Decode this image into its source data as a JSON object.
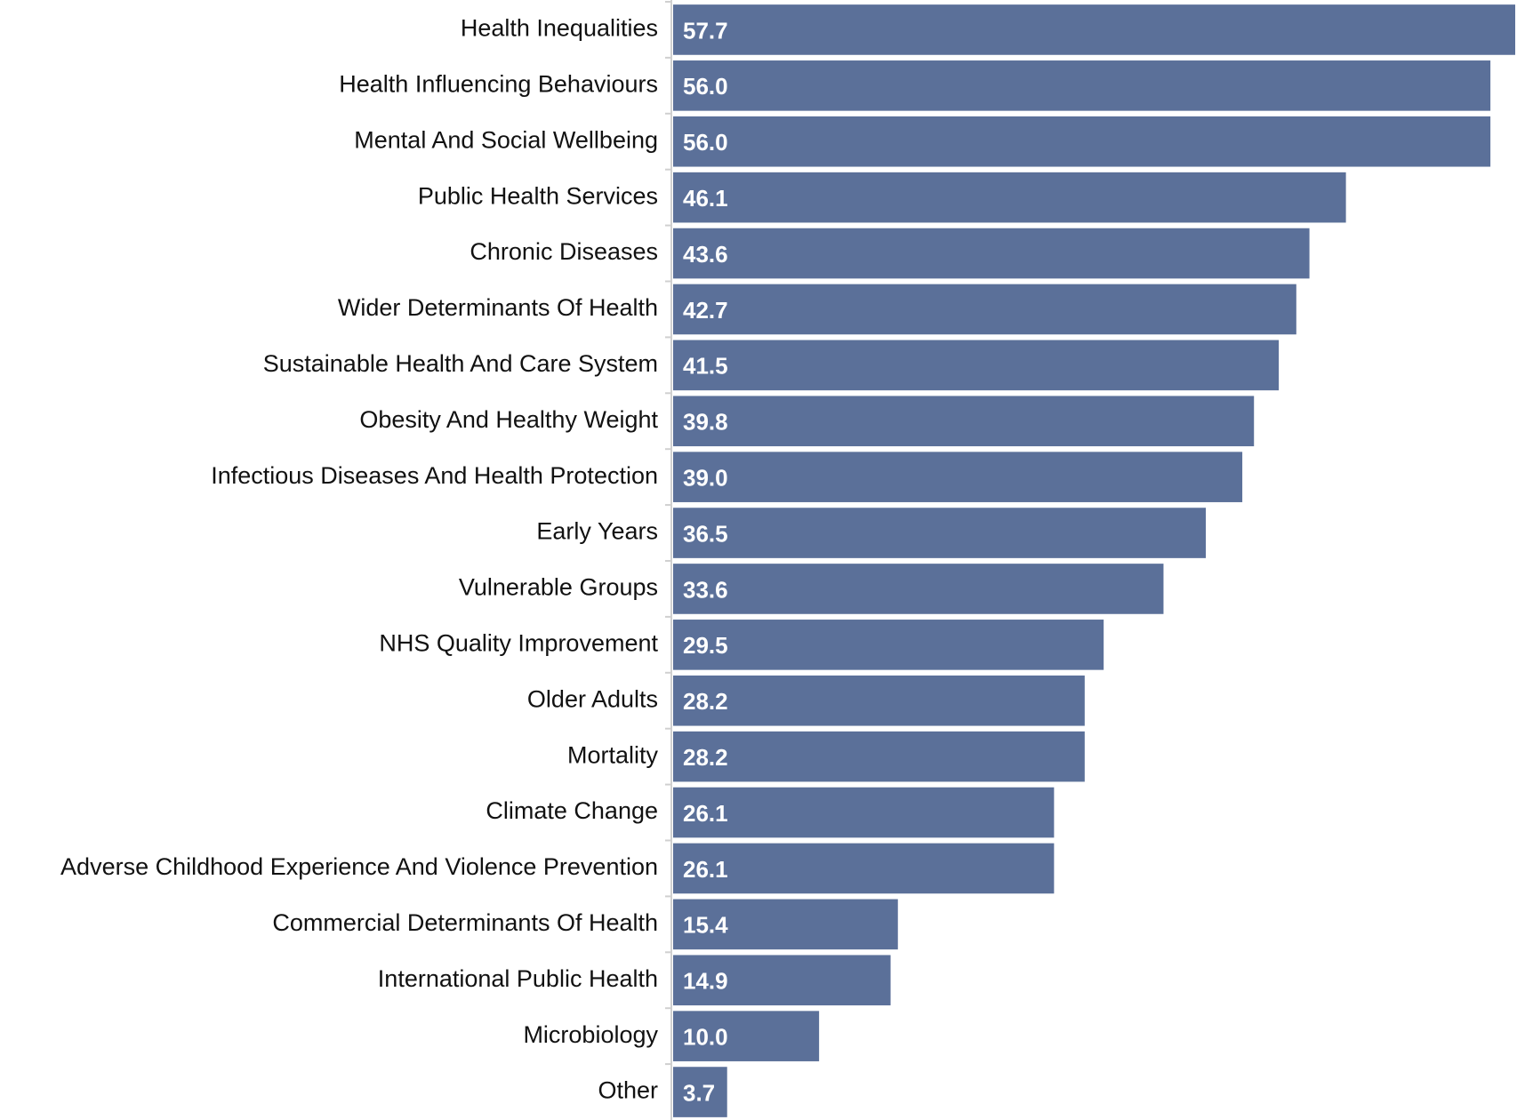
{
  "chart_data": {
    "type": "bar",
    "orientation": "horizontal",
    "color": "#5b7099",
    "categories": [
      "Health Inequalities",
      "Health Influencing Behaviours",
      "Mental And Social Wellbeing",
      "Public Health Services",
      "Chronic Diseases",
      "Wider Determinants Of Health",
      "Sustainable Health And Care System",
      "Obesity And Healthy Weight",
      "Infectious Diseases And Health Protection",
      "Early Years",
      "Vulnerable Groups",
      "NHS Quality Improvement",
      "Older Adults",
      "Mortality",
      "Climate Change",
      "Adverse Childhood Experience And Violence Prevention",
      "Commercial Determinants Of Health",
      "International Public Health",
      "Microbiology",
      "Other"
    ],
    "values": [
      57.7,
      56.0,
      56.0,
      46.1,
      43.6,
      42.7,
      41.5,
      39.8,
      39.0,
      36.5,
      33.6,
      29.5,
      28.2,
      28.2,
      26.1,
      26.1,
      15.4,
      14.9,
      10.0,
      3.7
    ],
    "value_labels": [
      "57.7",
      "56.0",
      "56.0",
      "46.1",
      "43.6",
      "42.7",
      "41.5",
      "39.8",
      "39.0",
      "36.5",
      "33.6",
      "29.5",
      "28.2",
      "28.2",
      "26.1",
      "26.1",
      "15.4",
      "14.9",
      "10.0",
      "3.7"
    ]
  }
}
